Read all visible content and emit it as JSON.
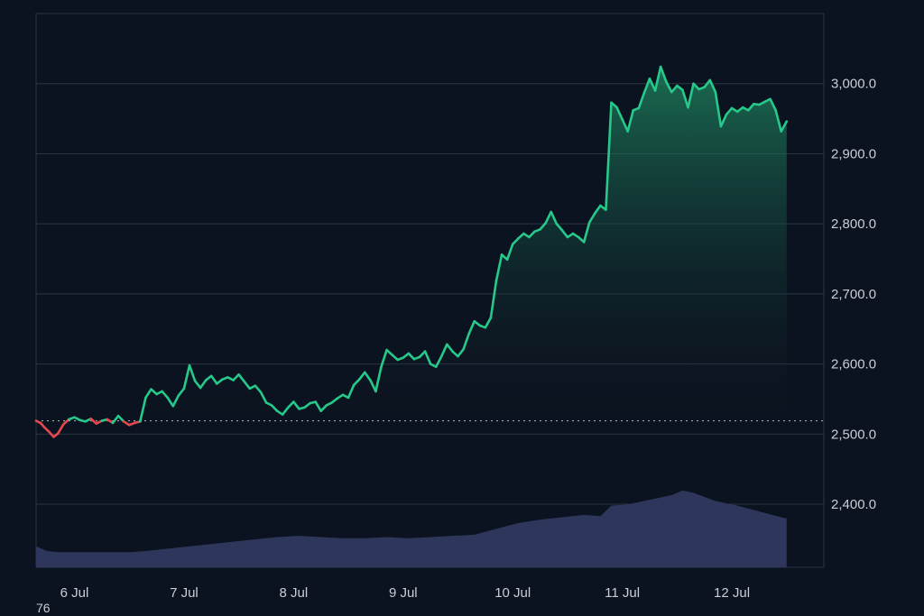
{
  "colors": {
    "background": "#0c1320",
    "grid": "#2a3444",
    "up_line": "#26c98a",
    "down_line": "#e5484d",
    "fill_top": "#1f8a63",
    "volume": "#2e375b",
    "baseline": "#c9ced6"
  },
  "corner_label": "76",
  "chart_data": {
    "type": "area",
    "title": "",
    "xlabel": "",
    "ylabel": "",
    "ylim": [
      2310,
      3100
    ],
    "y_ticks": [
      "2,400.0",
      "2,500.0",
      "2,600.0",
      "2,700.0",
      "2,800.0",
      "2,900.0",
      "3,000.0"
    ],
    "y_tick_values": [
      2400,
      2500,
      2600,
      2700,
      2800,
      2900,
      3000
    ],
    "x_ticks": [
      "6 Jul",
      "7 Jul",
      "8 Jul",
      "9 Jul",
      "10 Jul",
      "11 Jul",
      "12 Jul"
    ],
    "x_tick_values": [
      0.35,
      1.35,
      2.35,
      3.35,
      4.35,
      5.35,
      6.35
    ],
    "x_range": [
      0,
      7.0
    ],
    "baseline_value": 2519,
    "price_series": {
      "name": "",
      "points": [
        [
          0.0,
          2519
        ],
        [
          0.04,
          2516
        ],
        [
          0.08,
          2509
        ],
        [
          0.12,
          2503
        ],
        [
          0.16,
          2496
        ],
        [
          0.2,
          2501
        ],
        [
          0.25,
          2514
        ],
        [
          0.3,
          2521
        ],
        [
          0.35,
          2524
        ],
        [
          0.4,
          2520
        ],
        [
          0.45,
          2518
        ],
        [
          0.5,
          2522
        ],
        [
          0.55,
          2515
        ],
        [
          0.6,
          2519
        ],
        [
          0.65,
          2521
        ],
        [
          0.7,
          2516
        ],
        [
          0.75,
          2526
        ],
        [
          0.8,
          2518
        ],
        [
          0.85,
          2513
        ],
        [
          0.9,
          2516
        ],
        [
          0.95,
          2518
        ],
        [
          1.0,
          2552
        ],
        [
          1.05,
          2564
        ],
        [
          1.1,
          2557
        ],
        [
          1.15,
          2561
        ],
        [
          1.2,
          2552
        ],
        [
          1.25,
          2540
        ],
        [
          1.3,
          2555
        ],
        [
          1.35,
          2565
        ],
        [
          1.4,
          2598
        ],
        [
          1.45,
          2576
        ],
        [
          1.5,
          2566
        ],
        [
          1.55,
          2577
        ],
        [
          1.6,
          2583
        ],
        [
          1.65,
          2572
        ],
        [
          1.7,
          2578
        ],
        [
          1.75,
          2581
        ],
        [
          1.8,
          2577
        ],
        [
          1.85,
          2585
        ],
        [
          1.9,
          2575
        ],
        [
          1.95,
          2565
        ],
        [
          2.0,
          2569
        ],
        [
          2.05,
          2560
        ],
        [
          2.1,
          2545
        ],
        [
          2.15,
          2541
        ],
        [
          2.2,
          2533
        ],
        [
          2.25,
          2528
        ],
        [
          2.3,
          2538
        ],
        [
          2.35,
          2546
        ],
        [
          2.4,
          2536
        ],
        [
          2.45,
          2538
        ],
        [
          2.5,
          2544
        ],
        [
          2.55,
          2546
        ],
        [
          2.6,
          2533
        ],
        [
          2.65,
          2541
        ],
        [
          2.7,
          2545
        ],
        [
          2.75,
          2551
        ],
        [
          2.8,
          2556
        ],
        [
          2.85,
          2552
        ],
        [
          2.9,
          2570
        ],
        [
          2.95,
          2578
        ],
        [
          3.0,
          2588
        ],
        [
          3.05,
          2577
        ],
        [
          3.1,
          2561
        ],
        [
          3.15,
          2596
        ],
        [
          3.2,
          2620
        ],
        [
          3.25,
          2613
        ],
        [
          3.3,
          2606
        ],
        [
          3.35,
          2609
        ],
        [
          3.4,
          2615
        ],
        [
          3.45,
          2607
        ],
        [
          3.5,
          2610
        ],
        [
          3.55,
          2618
        ],
        [
          3.6,
          2600
        ],
        [
          3.65,
          2596
        ],
        [
          3.7,
          2611
        ],
        [
          3.75,
          2628
        ],
        [
          3.8,
          2618
        ],
        [
          3.85,
          2611
        ],
        [
          3.9,
          2621
        ],
        [
          3.95,
          2643
        ],
        [
          4.0,
          2661
        ],
        [
          4.05,
          2655
        ],
        [
          4.1,
          2652
        ],
        [
          4.15,
          2666
        ],
        [
          4.2,
          2719
        ],
        [
          4.25,
          2756
        ],
        [
          4.3,
          2749
        ],
        [
          4.35,
          2771
        ],
        [
          4.4,
          2779
        ],
        [
          4.45,
          2786
        ],
        [
          4.5,
          2781
        ],
        [
          4.55,
          2789
        ],
        [
          4.6,
          2792
        ],
        [
          4.65,
          2801
        ],
        [
          4.7,
          2817
        ],
        [
          4.75,
          2800
        ],
        [
          4.8,
          2791
        ],
        [
          4.85,
          2781
        ],
        [
          4.9,
          2786
        ],
        [
          4.95,
          2781
        ],
        [
          5.0,
          2774
        ],
        [
          5.05,
          2802
        ],
        [
          5.1,
          2815
        ],
        [
          5.15,
          2826
        ],
        [
          5.2,
          2820
        ],
        [
          5.25,
          2973
        ],
        [
          5.3,
          2966
        ],
        [
          5.35,
          2949
        ],
        [
          5.4,
          2932
        ],
        [
          5.45,
          2962
        ],
        [
          5.5,
          2965
        ],
        [
          5.55,
          2987
        ],
        [
          5.6,
          3007
        ],
        [
          5.65,
          2990
        ],
        [
          5.7,
          3024
        ],
        [
          5.75,
          3003
        ],
        [
          5.8,
          2988
        ],
        [
          5.85,
          2997
        ],
        [
          5.9,
          2991
        ],
        [
          5.95,
          2966
        ],
        [
          6.0,
          3000
        ],
        [
          6.05,
          2992
        ],
        [
          6.1,
          2995
        ],
        [
          6.15,
          3005
        ],
        [
          6.2,
          2988
        ],
        [
          6.25,
          2939
        ],
        [
          6.3,
          2956
        ],
        [
          6.35,
          2965
        ],
        [
          6.4,
          2960
        ],
        [
          6.45,
          2966
        ],
        [
          6.5,
          2962
        ],
        [
          6.55,
          2971
        ],
        [
          6.6,
          2970
        ],
        [
          6.65,
          2974
        ],
        [
          6.7,
          2978
        ],
        [
          6.75,
          2962
        ],
        [
          6.8,
          2932
        ],
        [
          6.85,
          2946
        ]
      ]
    },
    "volume_series": {
      "name": "",
      "points": [
        [
          0.0,
          18
        ],
        [
          0.1,
          14
        ],
        [
          0.2,
          13
        ],
        [
          0.35,
          13
        ],
        [
          0.5,
          13
        ],
        [
          0.7,
          13
        ],
        [
          0.85,
          13
        ],
        [
          1.0,
          14
        ],
        [
          1.2,
          16
        ],
        [
          1.4,
          18
        ],
        [
          1.6,
          20
        ],
        [
          1.8,
          22
        ],
        [
          2.0,
          24
        ],
        [
          2.2,
          26
        ],
        [
          2.4,
          27
        ],
        [
          2.6,
          26
        ],
        [
          2.8,
          25
        ],
        [
          3.0,
          25
        ],
        [
          3.2,
          26
        ],
        [
          3.4,
          25
        ],
        [
          3.6,
          26
        ],
        [
          3.8,
          27
        ],
        [
          4.0,
          28
        ],
        [
          4.2,
          33
        ],
        [
          4.4,
          38
        ],
        [
          4.6,
          41
        ],
        [
          4.8,
          43
        ],
        [
          5.0,
          45
        ],
        [
          5.15,
          44
        ],
        [
          5.25,
          53
        ],
        [
          5.4,
          54
        ],
        [
          5.6,
          58
        ],
        [
          5.8,
          62
        ],
        [
          5.9,
          66
        ],
        [
          6.0,
          64
        ],
        [
          6.2,
          57
        ],
        [
          6.4,
          53
        ],
        [
          6.6,
          48
        ],
        [
          6.8,
          43
        ],
        [
          6.85,
          42
        ]
      ],
      "max": 100
    }
  }
}
